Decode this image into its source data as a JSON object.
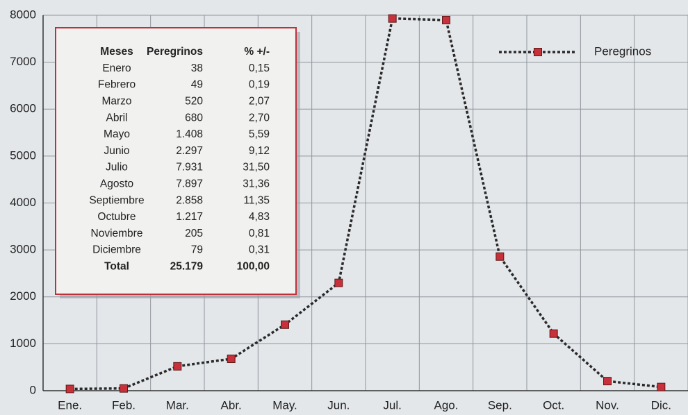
{
  "chart_data": {
    "type": "line",
    "categories": [
      "Ene.",
      "Feb.",
      "Mar.",
      "Abr.",
      "May.",
      "Jun.",
      "Jul.",
      "Ago.",
      "Sep.",
      "Oct.",
      "Nov.",
      "Dic."
    ],
    "series": [
      {
        "name": "Peregrinos",
        "color": "#c8303a",
        "values": [
          38,
          49,
          520,
          680,
          1408,
          2297,
          7931,
          7897,
          2858,
          1217,
          205,
          79
        ]
      }
    ],
    "ylim": [
      0,
      8000
    ],
    "yticks": [
      0,
      1000,
      2000,
      3000,
      4000,
      5000,
      6000,
      7000,
      8000
    ],
    "grid": true,
    "legend": "top-right"
  },
  "table": {
    "header": [
      "Meses",
      "Peregrinos",
      "% +/-"
    ],
    "rows": [
      [
        "Enero",
        "38",
        "0,15"
      ],
      [
        "Febrero",
        "49",
        "0,19"
      ],
      [
        "Marzo",
        "520",
        "2,07"
      ],
      [
        "Abril",
        "680",
        "2,70"
      ],
      [
        "Mayo",
        "1.408",
        "5,59"
      ],
      [
        "Junio",
        "2.297",
        "9,12"
      ],
      [
        "Julio",
        "7.931",
        "31,50"
      ],
      [
        "Agosto",
        "7.897",
        "31,36"
      ],
      [
        "Septiembre",
        "2.858",
        "11,35"
      ],
      [
        "Octubre",
        "1.217",
        "4,83"
      ],
      [
        "Noviembre",
        "205",
        "0,81"
      ],
      [
        "Diciembre",
        "79",
        "0,31"
      ]
    ],
    "total": [
      "Total",
      "25.179",
      "100,00"
    ]
  }
}
